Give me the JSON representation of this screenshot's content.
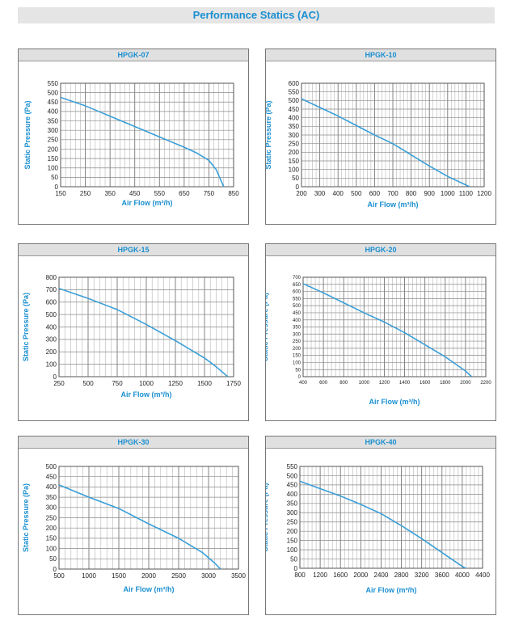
{
  "page_title": "Performance Statics (AC)",
  "colors": {
    "accent": "#1a8fd0",
    "curve": "#3a9fd8",
    "grid": "#999999"
  },
  "chart_data": [
    {
      "type": "line",
      "title": "HPGK-07",
      "xlabel": "Air Flow (m³/h)",
      "ylabel": "Static Pressure (Pa)",
      "xlim": [
        150,
        850
      ],
      "ylim": [
        0,
        550
      ],
      "xticks": [
        150,
        250,
        350,
        450,
        550,
        650,
        750,
        850
      ],
      "yticks": [
        0,
        50,
        100,
        150,
        200,
        250,
        300,
        350,
        400,
        450,
        500,
        550
      ],
      "x": [
        150,
        250,
        350,
        450,
        550,
        650,
        700,
        750,
        780,
        810
      ],
      "y": [
        475,
        430,
        375,
        320,
        265,
        210,
        180,
        140,
        90,
        0
      ]
    },
    {
      "type": "line",
      "title": "HPGK-10",
      "xlabel": "Air Flow (m³/h)",
      "ylabel": "Static Pressure (Pa)",
      "xlim": [
        200,
        1200
      ],
      "ylim": [
        0,
        600
      ],
      "xticks": [
        200,
        300,
        400,
        500,
        600,
        700,
        800,
        900,
        1000,
        1100,
        1200
      ],
      "yticks": [
        0,
        50,
        100,
        150,
        200,
        250,
        300,
        350,
        400,
        450,
        500,
        550,
        600
      ],
      "x": [
        200,
        300,
        400,
        500,
        600,
        700,
        800,
        900,
        1000,
        1120
      ],
      "y": [
        510,
        460,
        410,
        355,
        300,
        250,
        185,
        120,
        60,
        0
      ]
    },
    {
      "type": "line",
      "title": "HPGK-15",
      "xlabel": "Air Flow (m³/h)",
      "ylabel": "Static Pressure (Pa)",
      "xlim": [
        250,
        1750
      ],
      "ylim": [
        0,
        800
      ],
      "xticks": [
        250,
        500,
        750,
        1000,
        1250,
        1500,
        1750
      ],
      "yticks": [
        0,
        100,
        200,
        300,
        400,
        500,
        600,
        700,
        800
      ],
      "x": [
        250,
        500,
        750,
        1000,
        1250,
        1500,
        1600,
        1700
      ],
      "y": [
        710,
        630,
        540,
        420,
        290,
        150,
        80,
        0
      ]
    },
    {
      "type": "line",
      "title": "HPGK-20",
      "xlabel": "Air Flow (m³/h)",
      "ylabel": "Static Pressure (Pa)",
      "xlim": [
        400,
        2200
      ],
      "ylim": [
        0,
        700
      ],
      "xticks": [
        400,
        600,
        800,
        1000,
        1200,
        1400,
        1600,
        1800,
        2000,
        2200
      ],
      "yticks": [
        0,
        50,
        100,
        150,
        200,
        250,
        300,
        350,
        400,
        450,
        500,
        550,
        600,
        650,
        700
      ],
      "x": [
        400,
        600,
        800,
        1000,
        1200,
        1400,
        1600,
        1800,
        2000,
        2060
      ],
      "y": [
        655,
        590,
        520,
        450,
        385,
        310,
        225,
        140,
        40,
        0
      ]
    },
    {
      "type": "line",
      "title": "HPGK-30",
      "xlabel": "Air Flow (m³/h)",
      "ylabel": "Static Pressure (Pa)",
      "xlim": [
        500,
        3500
      ],
      "ylim": [
        0,
        500
      ],
      "xticks": [
        500,
        1000,
        1500,
        2000,
        2500,
        3000,
        3500
      ],
      "yticks": [
        0,
        50,
        100,
        150,
        200,
        250,
        300,
        350,
        400,
        450,
        500
      ],
      "x": [
        500,
        1000,
        1500,
        2000,
        2500,
        2900,
        3100,
        3200
      ],
      "y": [
        410,
        350,
        295,
        220,
        150,
        80,
        30,
        0
      ]
    },
    {
      "type": "line",
      "title": "HPGK-40",
      "xlabel": "Air Flow (m³/h)",
      "ylabel": "Static Pressure (Pa)",
      "xlim": [
        800,
        4400
      ],
      "ylim": [
        0,
        550
      ],
      "xticks": [
        800,
        1200,
        1600,
        2000,
        2400,
        2800,
        3200,
        3600,
        4000,
        4400
      ],
      "yticks": [
        0,
        50,
        100,
        150,
        200,
        250,
        300,
        350,
        400,
        450,
        500,
        550
      ],
      "x": [
        800,
        1200,
        1600,
        2000,
        2400,
        2800,
        3200,
        3600,
        4000,
        4200
      ],
      "y": [
        470,
        430,
        390,
        345,
        295,
        230,
        160,
        85,
        10,
        -20
      ]
    }
  ]
}
